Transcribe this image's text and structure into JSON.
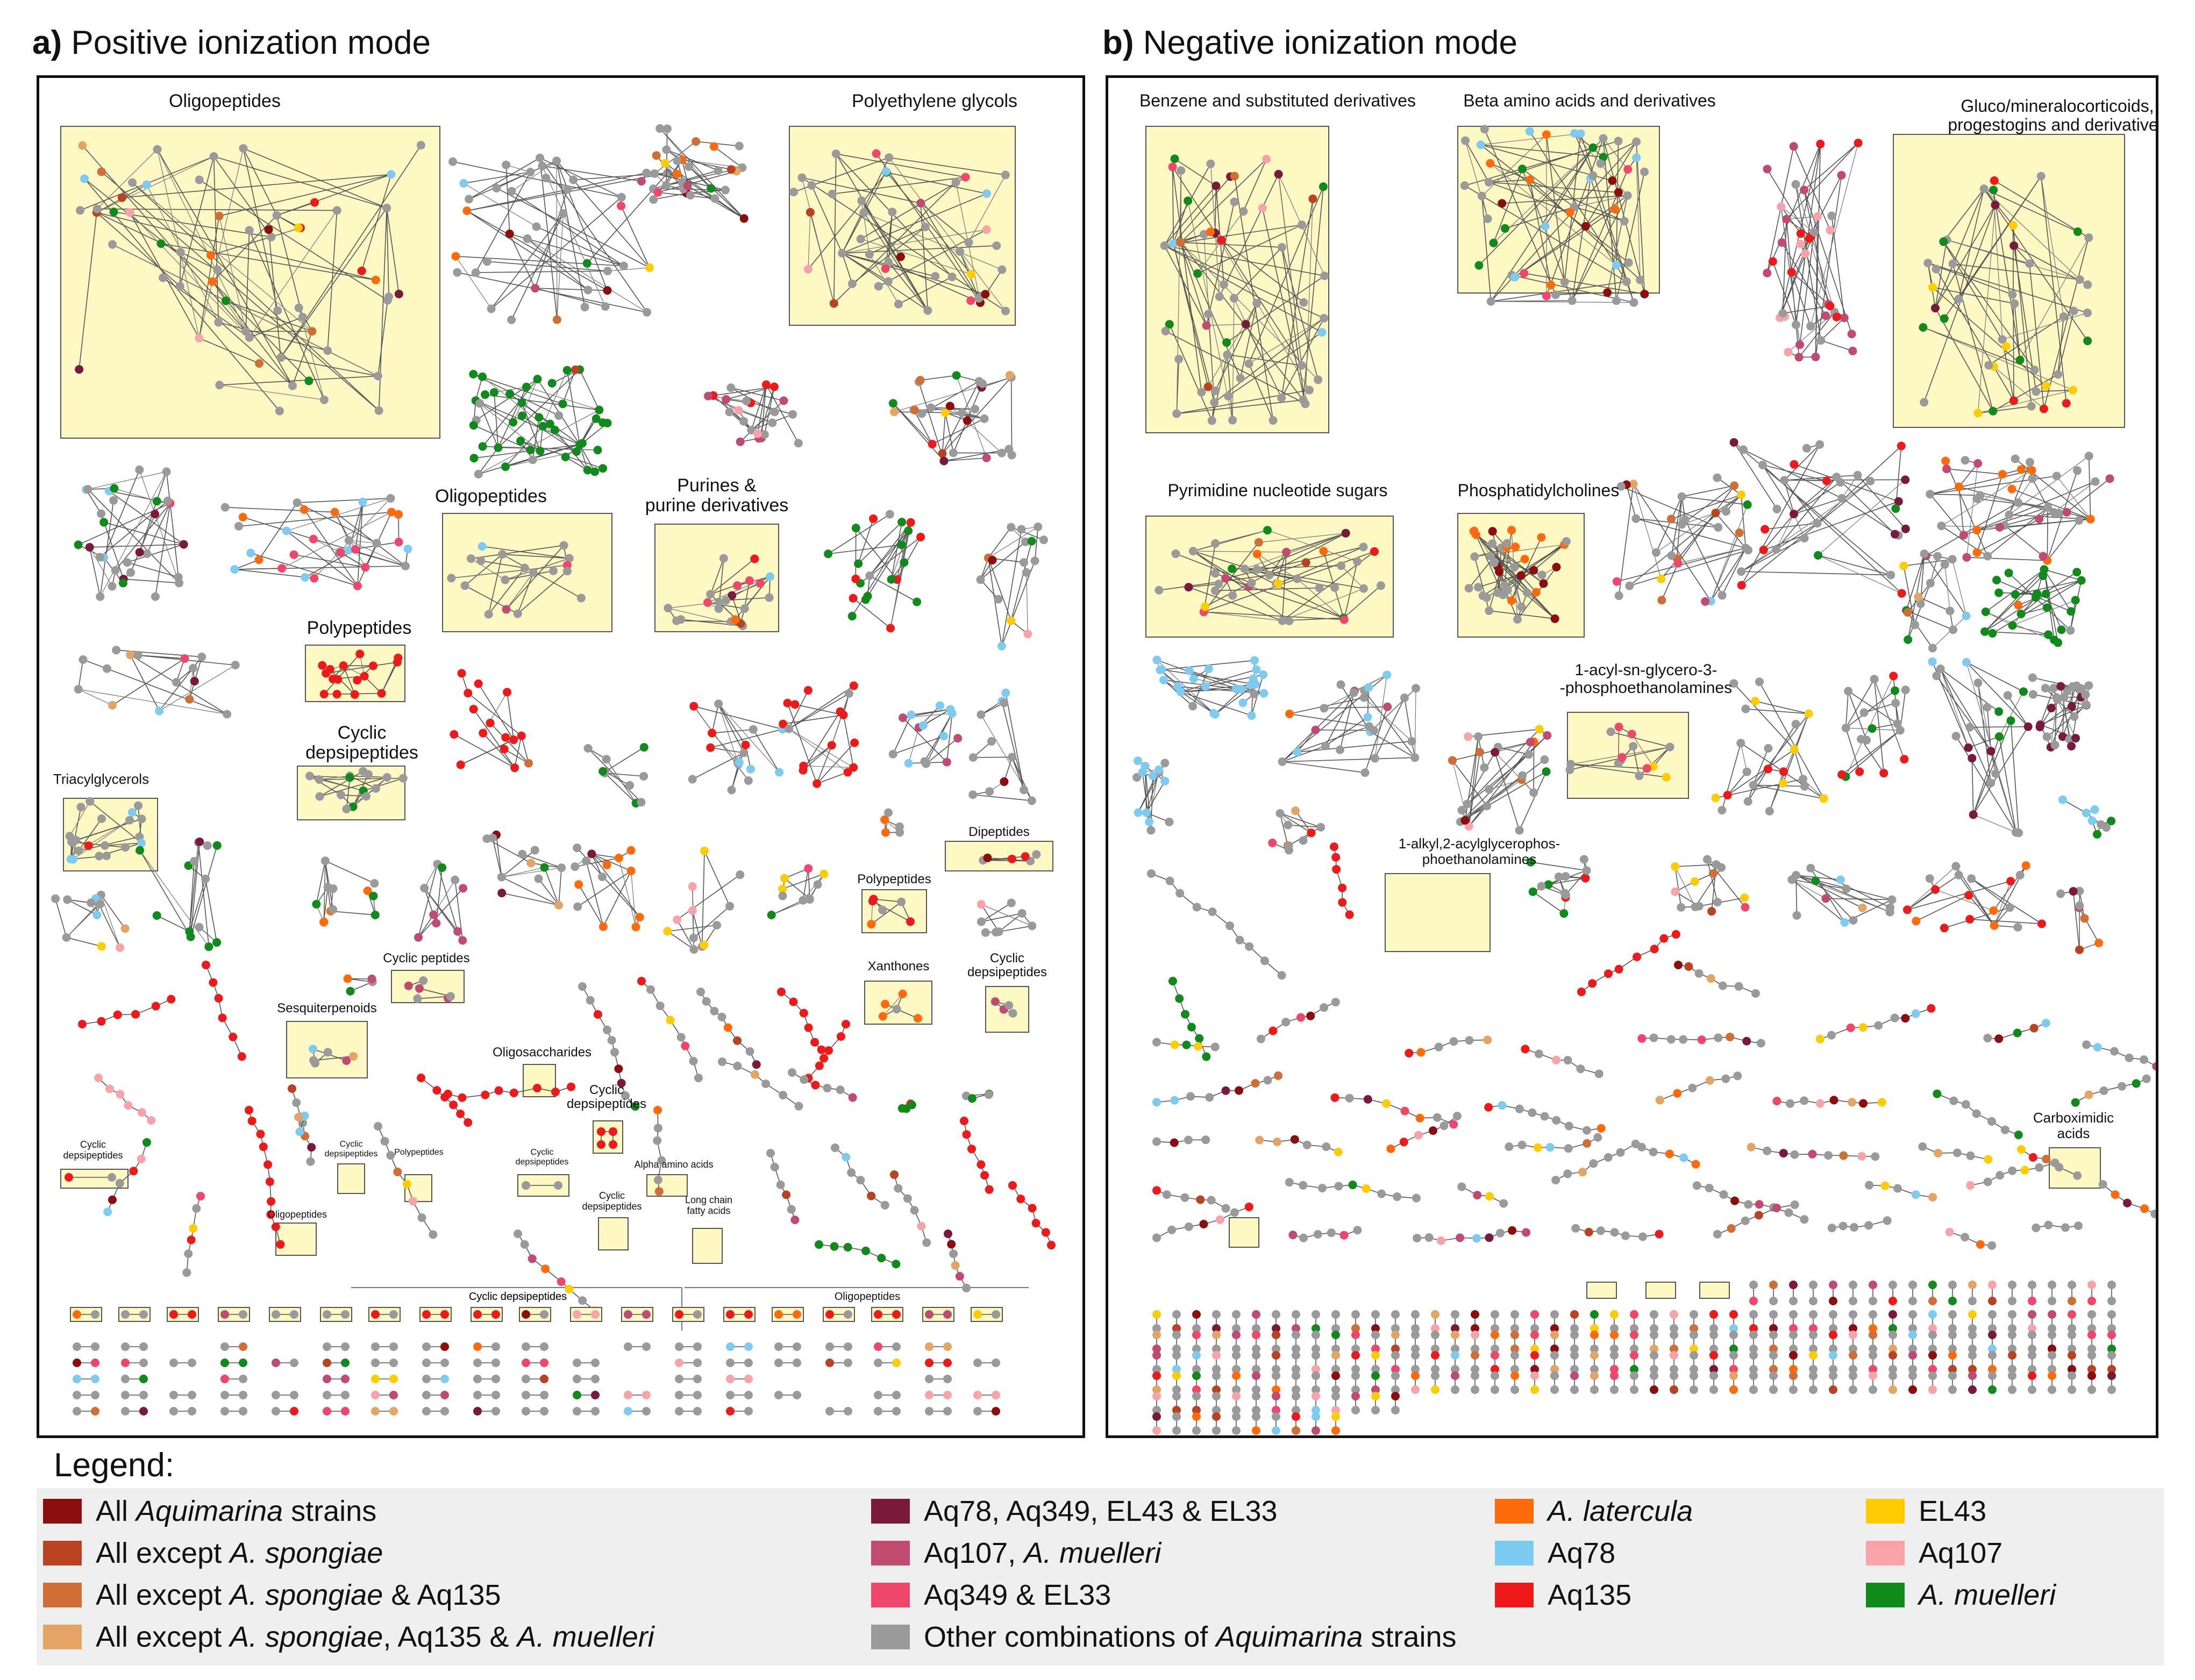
{
  "panel_a": {
    "prefix": "a)",
    "title": "Positive ionization mode",
    "labels": [
      {
        "text": "Oligopeptides",
        "size": 34
      },
      {
        "text": "Polyethylene glycols",
        "size": 34
      },
      {
        "text": "Oligopeptides",
        "size": 34
      },
      {
        "text": "Purines &\npurine derivatives",
        "size": 34
      },
      {
        "text": "Polypeptides",
        "size": 34
      },
      {
        "text": "Cyclic\ndepsipeptides",
        "size": 34
      },
      {
        "text": "Triacylglycerols",
        "size": 26
      },
      {
        "text": "Dipeptides",
        "size": 24
      },
      {
        "text": "Polypeptides",
        "size": 24
      },
      {
        "text": "Cyclic peptides",
        "size": 24
      },
      {
        "text": "Xanthones",
        "size": 24
      },
      {
        "text": "Cyclic\ndepsipeptides",
        "size": 24
      },
      {
        "text": "Sesquiterpenoids",
        "size": 24
      },
      {
        "text": "Oligosaccharides",
        "size": 24
      },
      {
        "text": "Cyclic\ndepsipeptides",
        "size": 24
      },
      {
        "text": "Cyclic\ndepsipeptides",
        "size": 18
      },
      {
        "text": "Cyclic\ndepsipeptides",
        "size": 16
      },
      {
        "text": "Polypeptides",
        "size": 16
      },
      {
        "text": "Cyclic\ndepsipeptides",
        "size": 16
      },
      {
        "text": "Alpha amino acids",
        "size": 18
      },
      {
        "text": "Cyclic\ndepsipeptides",
        "size": 18
      },
      {
        "text": "Long chain\nfatty acids",
        "size": 18
      },
      {
        "text": "Oligopeptides",
        "size": 18
      },
      {
        "text": "Cyclic depsipeptides",
        "size": 20
      },
      {
        "text": "Oligopeptides",
        "size": 20
      }
    ]
  },
  "panel_b": {
    "prefix": "b)",
    "title": "Negative ionization mode",
    "labels": [
      {
        "text": "Benzene and substituted derivatives",
        "size": 32
      },
      {
        "text": "Beta amino acids and derivatives",
        "size": 32
      },
      {
        "text": "Gluco/mineralocorticoids,\nprogestogins and derivatives",
        "size": 32
      },
      {
        "text": "Pyrimidine nucleotide sugars",
        "size": 32
      },
      {
        "text": "Phosphatidylcholines",
        "size": 32
      },
      {
        "text": "1-acyl-sn-glycero-3-\n-phosphoethanolamines",
        "size": 30
      },
      {
        "text": "1-alkyl,2-acylglycerophos-\nphoethanolamines",
        "size": 26
      },
      {
        "text": "Carboximidic\nacids",
        "size": 26
      }
    ]
  },
  "legend": {
    "title": "Legend:",
    "items": [
      {
        "color": "#8b0d0d",
        "pre": "All ",
        "it": "Aquimarina",
        "post": " strains"
      },
      {
        "color": "#b94320",
        "pre": "All except ",
        "it": "A. spongiae",
        "post": ""
      },
      {
        "color": "#cf6e35",
        "pre": "All except ",
        "it": "A. spongiae",
        "post": " & Aq135"
      },
      {
        "color": "#e4a464",
        "pre": "All except ",
        "it": "A. spongiae",
        "post": ", Aq135  & ",
        "it2": "A. muelleri"
      },
      {
        "color": "#7a1a3a",
        "pre": "Aq78, Aq349, EL43 & EL33",
        "it": "",
        "post": ""
      },
      {
        "color": "#c04a70",
        "pre": "Aq107, ",
        "it": "A. muelleri",
        "post": ""
      },
      {
        "color": "#f0466a",
        "pre": "Aq349 & EL33",
        "it": "",
        "post": ""
      },
      {
        "color": "#9a9a9a",
        "pre": "Other combinations of ",
        "it": "Aquimarina",
        "post": " strains"
      },
      {
        "color": "#ff6a0a",
        "pre": "",
        "it": "A. latercula",
        "post": ""
      },
      {
        "color": "#7ecbf2",
        "pre": "Aq78",
        "it": "",
        "post": ""
      },
      {
        "color": "#ee1a1a",
        "pre": "Aq135",
        "it": "",
        "post": ""
      },
      {
        "color": "#ffcc00",
        "pre": "EL43",
        "it": "",
        "post": ""
      },
      {
        "color": "#f7a3a8",
        "pre": "Aq107",
        "it": "",
        "post": ""
      },
      {
        "color": "#108a1a",
        "pre": "",
        "it": "A. muelleri",
        "post": ""
      }
    ]
  }
}
